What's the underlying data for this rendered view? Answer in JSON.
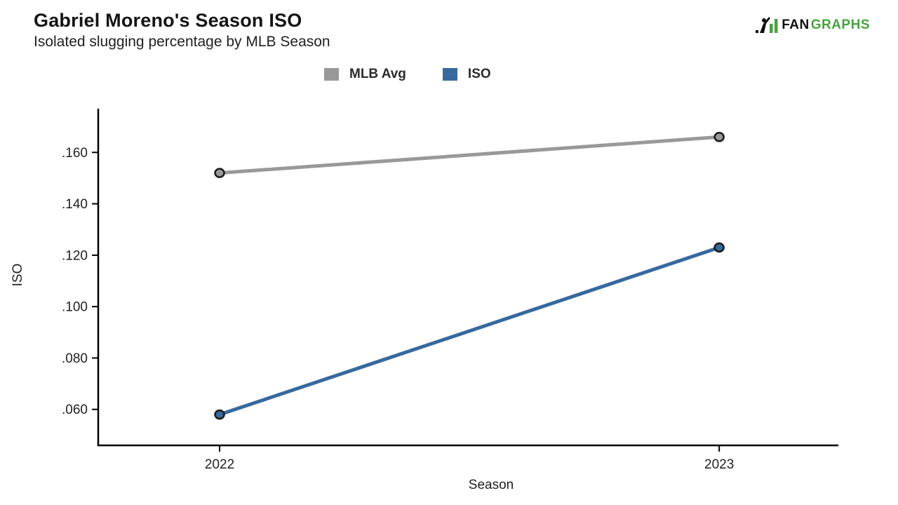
{
  "logo": {
    "text_fan": "FAN",
    "text_graphs": "GRAPHS",
    "green": "#48a33e",
    "dark": "#111111"
  },
  "chart_data": {
    "type": "line",
    "title": "Gabriel Moreno's Season ISO",
    "subtitle": "Isolated slugging percentage by MLB Season",
    "xlabel": "Season",
    "ylabel": "ISO",
    "categories": [
      "2022",
      "2023"
    ],
    "series": [
      {
        "name": "MLB Avg",
        "color": "#999999",
        "values": [
          0.152,
          0.166
        ]
      },
      {
        "name": "ISO",
        "color": "#36699e",
        "values": [
          0.058,
          0.123
        ]
      }
    ],
    "y_ticks": [
      {
        "value": 0.06,
        "label": ".060"
      },
      {
        "value": 0.08,
        "label": ".080"
      },
      {
        "value": 0.1,
        "label": ".100"
      },
      {
        "value": 0.12,
        "label": ".120"
      },
      {
        "value": 0.14,
        "label": ".140"
      },
      {
        "value": 0.16,
        "label": ".160"
      }
    ],
    "ylim": [
      0.046,
      0.177
    ],
    "grid": false,
    "legend_position": "top",
    "axis_color": "#000000",
    "text_color": "#222222",
    "marker_outline": "#1a1a1a"
  }
}
